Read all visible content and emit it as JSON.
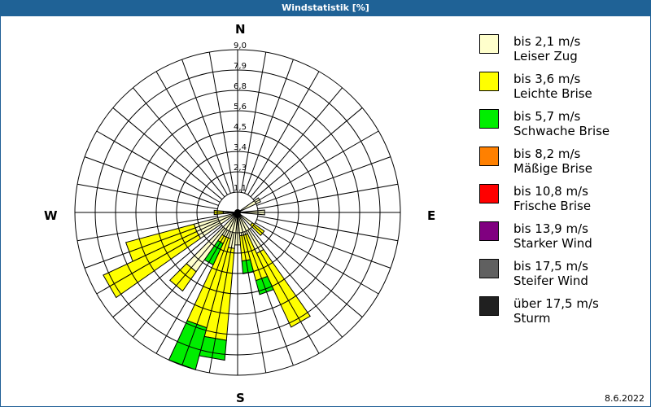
{
  "title": "Windstatistik [%]",
  "date": "8.6.2022",
  "compass": {
    "n": "N",
    "e": "E",
    "s": "S",
    "w": "W"
  },
  "legend": [
    {
      "range": "bis 2,1 m/s",
      "name": "Leiser Zug",
      "color": "#ffffcc"
    },
    {
      "range": "bis 3,6 m/s",
      "name": "Leichte Brise",
      "color": "#ffff00"
    },
    {
      "range": "bis 5,7 m/s",
      "name": "Schwache Brise",
      "color": "#00ee00"
    },
    {
      "range": "bis 8,2 m/s",
      "name": "Mäßige Brise",
      "color": "#ff8000"
    },
    {
      "range": "bis 10,8 m/s",
      "name": "Frische Brise",
      "color": "#ff0000"
    },
    {
      "range": "bis 13,9 m/s",
      "name": "Starker Wind",
      "color": "#800080"
    },
    {
      "range": "bis 17,5 m/s",
      "name": "Steifer Wind",
      "color": "#606060"
    },
    {
      "range": "über 17,5 m/s",
      "name": "Sturm",
      "color": "#202020"
    }
  ],
  "chart_data": {
    "type": "wind-rose",
    "title": "Windstatistik [%]",
    "radial_ticks": [
      "1,1",
      "2,3",
      "3,4",
      "4,5",
      "5,6",
      "6,8",
      "7,9",
      "9,0"
    ],
    "rmax": 9.0,
    "sector_width_deg": 10,
    "categories": [
      "bis 2,1 m/s",
      "bis 3,6 m/s",
      "bis 5,7 m/s",
      "bis 8,2 m/s",
      "bis 10,8 m/s",
      "bis 13,9 m/s",
      "bis 17,5 m/s",
      "über 17,5 m/s"
    ],
    "sectors": [
      {
        "dir": 60,
        "cum": [
          1.4
        ]
      },
      {
        "dir": 90,
        "cum": [
          1.5
        ]
      },
      {
        "dir": 130,
        "cum": [
          1.0,
          1.8
        ]
      },
      {
        "dir": 150,
        "cum": [
          2.5,
          7.0
        ]
      },
      {
        "dir": 160,
        "cum": [
          1.3,
          3.9,
          4.7
        ]
      },
      {
        "dir": 170,
        "cum": [
          1.3,
          2.7,
          3.4
        ]
      },
      {
        "dir": 180,
        "cum": [
          1.8
        ]
      },
      {
        "dir": 190,
        "cum": [
          2.0,
          7.1,
          8.2
        ]
      },
      {
        "dir": 200,
        "cum": [
          1.5,
          6.6,
          9.0
        ]
      },
      {
        "dir": 210,
        "cum": [
          1.5,
          1.9,
          3.2
        ]
      },
      {
        "dir": 220,
        "cum": [
          4.0,
          5.3
        ]
      },
      {
        "dir": 240,
        "cum": [
          2.5,
          8.2
        ]
      },
      {
        "dir": 250,
        "cum": [
          2.5,
          6.4
        ]
      },
      {
        "dir": 270,
        "cum": [
          0.8,
          1.3
        ]
      }
    ]
  }
}
